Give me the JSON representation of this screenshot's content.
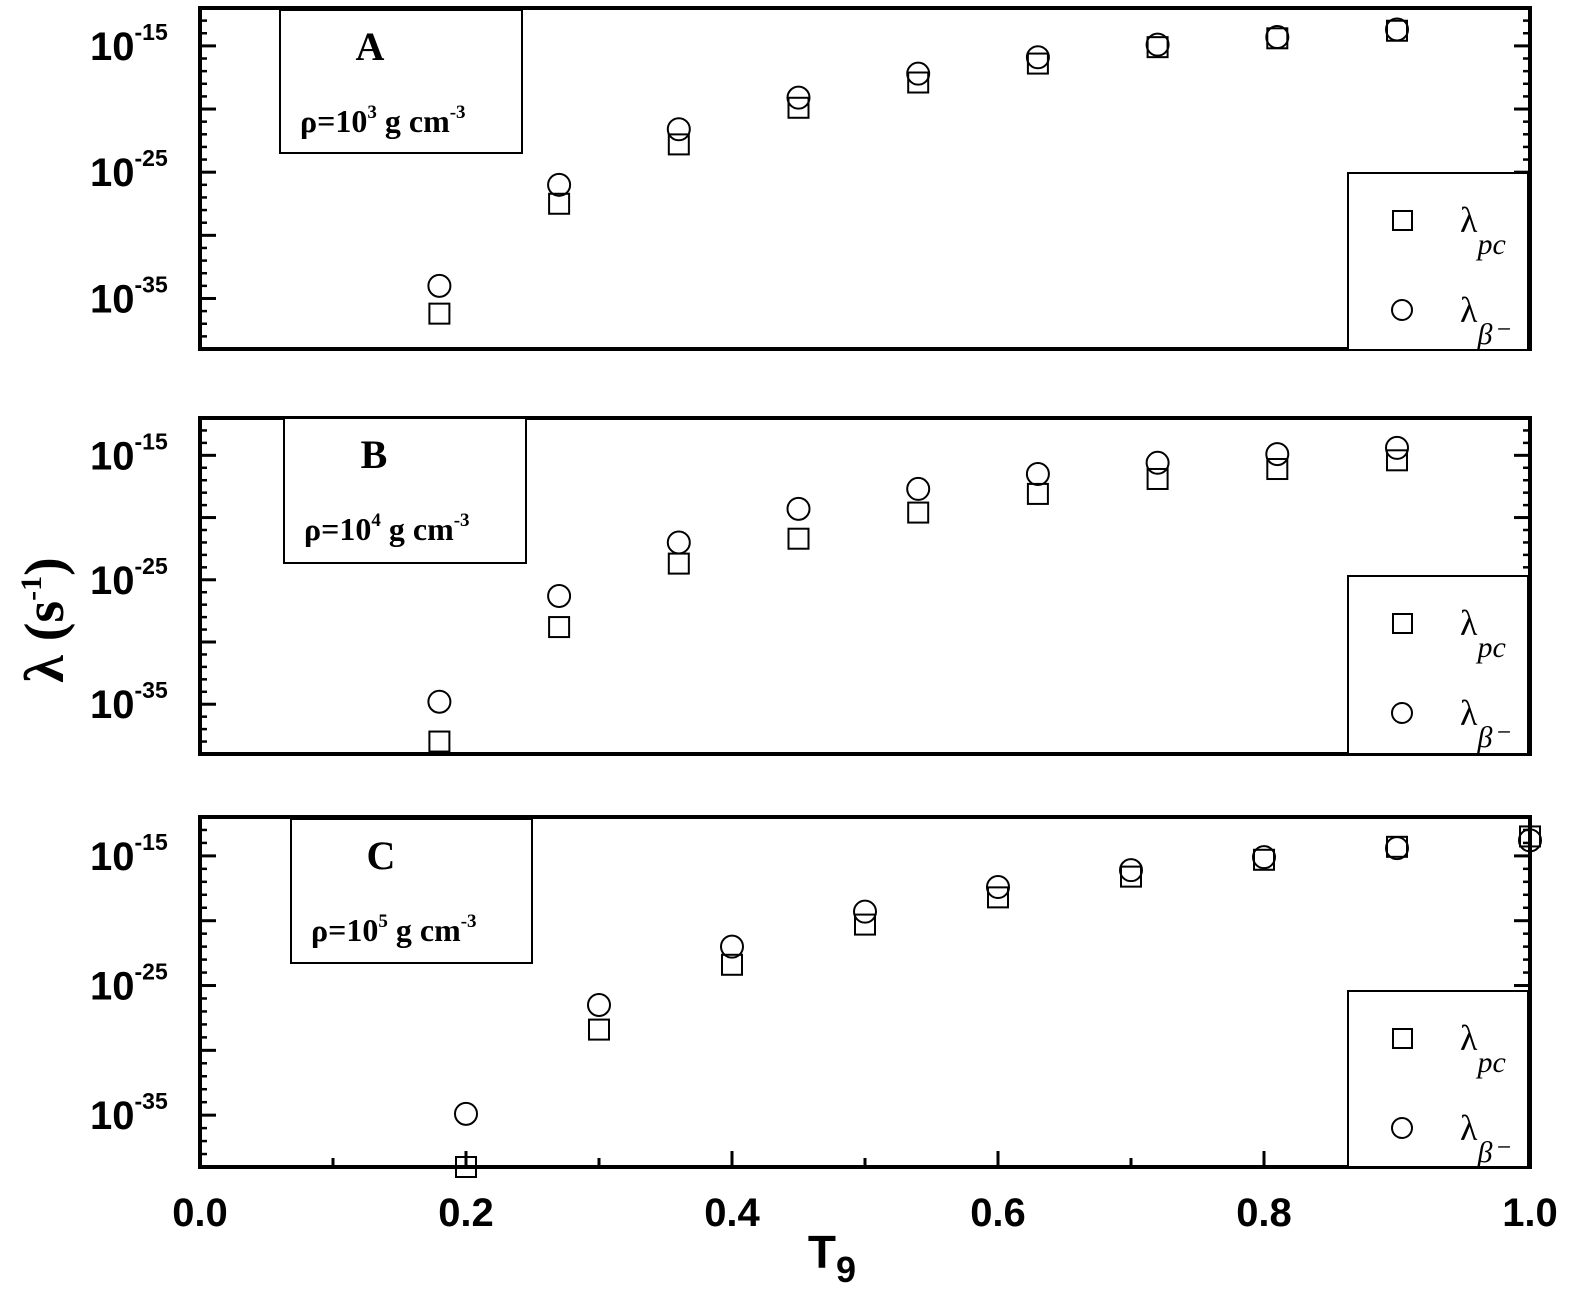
{
  "chart_data": [
    {
      "type": "scatter",
      "panel_label": "A",
      "density_label": {
        "base": "ρ=10",
        "exp": "3",
        "unit": " g cm",
        "unit_exp": "-3"
      },
      "xlim": [
        0.0,
        1.0
      ],
      "ylim_log10": [
        -39,
        -12
      ],
      "y_scale": "log",
      "grid": false,
      "legend_position": "bottom-right",
      "series": [
        {
          "marker": "square",
          "x": [
            0.18,
            0.27,
            0.36,
            0.45,
            0.54,
            0.63,
            0.72,
            0.81,
            0.9
          ],
          "log10_y": [
            -36.2,
            -27.5,
            -22.8,
            -19.9,
            -17.9,
            -16.4,
            -15.1,
            -14.4,
            -13.8
          ]
        },
        {
          "marker": "circle",
          "x": [
            0.18,
            0.27,
            0.36,
            0.45,
            0.54,
            0.63,
            0.72,
            0.81,
            0.9
          ],
          "log10_y": [
            -34.0,
            -26.0,
            -21.6,
            -19.1,
            -17.2,
            -15.9,
            -14.9,
            -14.3,
            -13.7
          ]
        }
      ]
    },
    {
      "type": "scatter",
      "panel_label": "B",
      "density_label": {
        "base": "ρ=10",
        "exp": "4",
        "unit": " g cm",
        "unit_exp": "-3"
      },
      "xlim": [
        0.0,
        1.0
      ],
      "ylim_log10": [
        -39,
        -12
      ],
      "y_scale": "log",
      "grid": false,
      "legend_position": "bottom-right",
      "series": [
        {
          "marker": "square",
          "x": [
            0.18,
            0.27,
            0.36,
            0.45,
            0.54,
            0.63,
            0.72,
            0.81,
            0.9
          ],
          "log10_y": [
            -38.0,
            -28.8,
            -23.7,
            -21.7,
            -19.6,
            -18.1,
            -16.9,
            -16.1,
            -15.4
          ]
        },
        {
          "marker": "circle",
          "x": [
            0.18,
            0.27,
            0.36,
            0.45,
            0.54,
            0.63,
            0.72,
            0.81,
            0.9
          ],
          "log10_y": [
            -34.8,
            -26.3,
            -22.0,
            -19.3,
            -17.7,
            -16.5,
            -15.6,
            -14.9,
            -14.4
          ]
        }
      ]
    },
    {
      "type": "scatter",
      "panel_label": "C",
      "density_label": {
        "base": "ρ=10",
        "exp": "5",
        "unit": " g cm",
        "unit_exp": "-3"
      },
      "xlim": [
        0.0,
        1.0
      ],
      "ylim_log10": [
        -39,
        -12
      ],
      "y_scale": "log",
      "grid": false,
      "legend_position": "bottom-right",
      "series": [
        {
          "marker": "square",
          "x": [
            0.2,
            0.3,
            0.4,
            0.5,
            0.6,
            0.7,
            0.8,
            0.9,
            1.0
          ],
          "log10_y": [
            -39.0,
            -28.4,
            -23.4,
            -20.3,
            -18.2,
            -16.6,
            -15.3,
            -14.3,
            -13.5
          ]
        },
        {
          "marker": "circle",
          "x": [
            0.2,
            0.3,
            0.4,
            0.5,
            0.6,
            0.7,
            0.8,
            0.9,
            1.0
          ],
          "log10_y": [
            -34.9,
            -26.5,
            -22.0,
            -19.3,
            -17.4,
            -16.1,
            -15.1,
            -14.4,
            -13.8
          ]
        }
      ]
    }
  ],
  "axes": {
    "y_title": {
      "main": "λ (s",
      "exp": "-1",
      "close": ")"
    },
    "x_title": {
      "main": "T",
      "sub": "9"
    },
    "x_ticks": [
      "0.0",
      "0.2",
      "0.4",
      "0.6",
      "0.8",
      "1.0"
    ],
    "y_ticks": [
      {
        "base": "10",
        "exp": "-15"
      },
      {
        "base": "10",
        "exp": "-25"
      },
      {
        "base": "10",
        "exp": "-35"
      }
    ]
  },
  "legend": {
    "entries": [
      {
        "marker": "square",
        "symbol": "λ",
        "sub": "pc"
      },
      {
        "marker": "circle",
        "symbol": "λ",
        "sub": "β⁻"
      }
    ]
  }
}
